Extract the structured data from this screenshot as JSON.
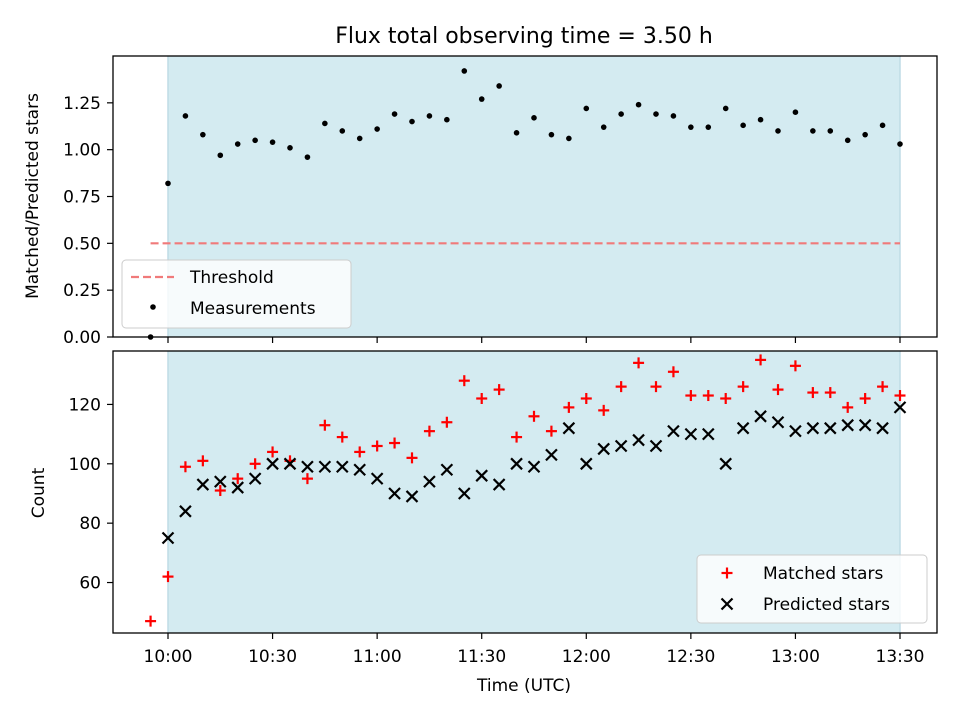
{
  "chart_data": [
    {
      "type": "scatter",
      "title": "Flux total observing time = 3.50 h",
      "xlabel": "",
      "ylabel": "Matched/Predicted stars",
      "ylim": [
        0,
        1.5
      ],
      "yticks": [
        "0.00",
        "0.25",
        "0.50",
        "0.75",
        "1.00",
        "1.25"
      ],
      "observing_window": [
        "10:00",
        "13:30"
      ],
      "threshold": 0.5,
      "legend_position": "lower-left",
      "legend": [
        "Threshold",
        "Measurements"
      ],
      "series": [
        {
          "name": "Measurements",
          "x": [
            "09:55",
            "10:00",
            "10:05",
            "10:10",
            "10:15",
            "10:20",
            "10:25",
            "10:30",
            "10:35",
            "10:40",
            "10:45",
            "10:50",
            "10:55",
            "11:00",
            "11:05",
            "11:10",
            "11:15",
            "11:20",
            "11:25",
            "11:30",
            "11:35",
            "11:40",
            "11:45",
            "11:50",
            "11:55",
            "12:00",
            "12:05",
            "12:10",
            "12:15",
            "12:20",
            "12:25",
            "12:30",
            "12:35",
            "12:40",
            "12:45",
            "12:50",
            "12:55",
            "13:00",
            "13:05",
            "13:10",
            "13:15",
            "13:20",
            "13:25",
            "13:30"
          ],
          "y": [
            0.0,
            0.82,
            1.18,
            1.08,
            0.97,
            1.03,
            1.05,
            1.04,
            1.01,
            0.96,
            1.14,
            1.1,
            1.06,
            1.11,
            1.19,
            1.15,
            1.18,
            1.16,
            1.42,
            1.27,
            1.34,
            1.09,
            1.17,
            1.08,
            1.06,
            1.22,
            1.12,
            1.19,
            1.24,
            1.19,
            1.18,
            1.12,
            1.12,
            1.22,
            1.13,
            1.16,
            1.1,
            1.2,
            1.1,
            1.1,
            1.05,
            1.08,
            1.13,
            1.03
          ]
        }
      ]
    },
    {
      "type": "scatter",
      "title": "",
      "xlabel": "Time (UTC)",
      "ylabel": "Count",
      "ylim": [
        43,
        138
      ],
      "yticks": [
        "60",
        "80",
        "100",
        "120"
      ],
      "xticks": [
        "10:00",
        "10:30",
        "11:00",
        "11:30",
        "12:00",
        "12:30",
        "13:00",
        "13:30"
      ],
      "observing_window": [
        "10:00",
        "13:30"
      ],
      "legend_position": "lower-right",
      "legend": [
        "Matched stars",
        "Predicted stars"
      ],
      "series": [
        {
          "name": "Matched stars",
          "x": [
            "09:55",
            "10:00",
            "10:05",
            "10:10",
            "10:15",
            "10:20",
            "10:25",
            "10:30",
            "10:35",
            "10:40",
            "10:45",
            "10:50",
            "10:55",
            "11:00",
            "11:05",
            "11:10",
            "11:15",
            "11:20",
            "11:25",
            "11:30",
            "11:35",
            "11:40",
            "11:45",
            "11:50",
            "11:55",
            "12:00",
            "12:05",
            "12:10",
            "12:15",
            "12:20",
            "12:25",
            "12:30",
            "12:35",
            "12:40",
            "12:45",
            "12:50",
            "12:55",
            "13:00",
            "13:05",
            "13:10",
            "13:15",
            "13:20",
            "13:25",
            "13:30"
          ],
          "y": [
            47,
            62,
            99,
            101,
            91,
            95,
            100,
            104,
            101,
            95,
            113,
            109,
            104,
            106,
            107,
            102,
            111,
            114,
            128,
            122,
            125,
            109,
            116,
            111,
            119,
            122,
            118,
            126,
            134,
            126,
            131,
            123,
            123,
            122,
            126,
            135,
            125,
            133,
            124,
            124,
            119,
            122,
            126,
            123
          ]
        },
        {
          "name": "Predicted stars",
          "x": [
            "10:00",
            "10:05",
            "10:10",
            "10:15",
            "10:20",
            "10:25",
            "10:30",
            "10:35",
            "10:40",
            "10:45",
            "10:50",
            "10:55",
            "11:00",
            "11:05",
            "11:10",
            "11:15",
            "11:20",
            "11:25",
            "11:30",
            "11:35",
            "11:40",
            "11:45",
            "11:50",
            "11:55",
            "12:00",
            "12:05",
            "12:10",
            "12:15",
            "12:20",
            "12:25",
            "12:30",
            "12:35",
            "12:40",
            "12:45",
            "12:50",
            "12:55",
            "13:00",
            "13:05",
            "13:10",
            "13:15",
            "13:20",
            "13:25",
            "13:30"
          ],
          "y": [
            75,
            84,
            93,
            94,
            92,
            95,
            100,
            100,
            99,
            99,
            99,
            98,
            95,
            90,
            89,
            94,
            98,
            90,
            96,
            93,
            100,
            99,
            103,
            112,
            100,
            105,
            106,
            108,
            106,
            111,
            110,
            110,
            100,
            112,
            116,
            114,
            111,
            112,
            112,
            113,
            113,
            112,
            119
          ]
        }
      ]
    }
  ],
  "colors": {
    "window_band": "#d4ebf1",
    "window_edge": "#bfdce6",
    "threshold": "#f07a7a",
    "measurements": "#000000",
    "matched": "#ff0000",
    "predicted": "#000000"
  }
}
